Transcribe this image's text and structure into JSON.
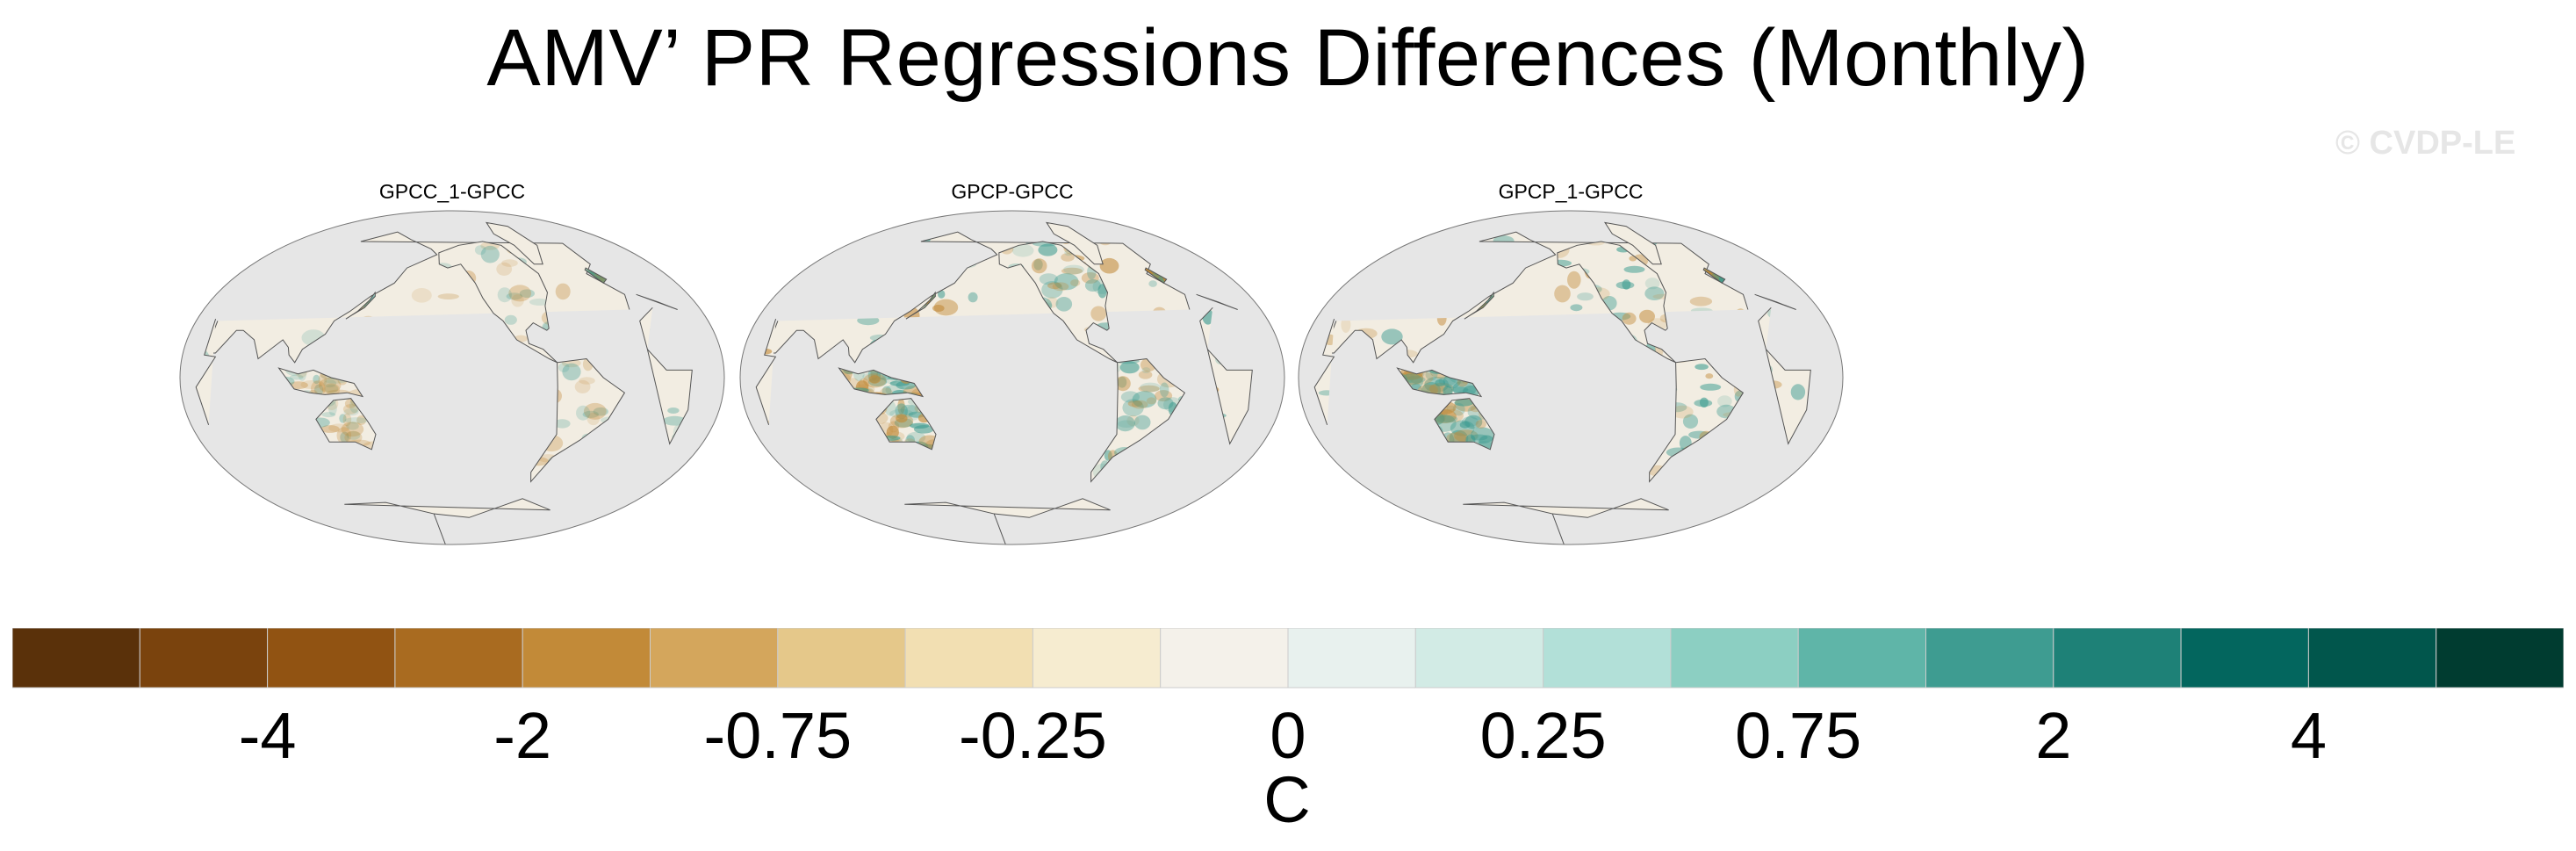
{
  "title": "AMV’ PR Regressions Differences (Monthly)",
  "watermark": "© CVDP-LE",
  "panels": [
    {
      "title": "GPCC_1-GPCC",
      "intensity": 0.45
    },
    {
      "title": "GPCP-GPCC",
      "intensity": 1.0
    },
    {
      "title": "GPCP_1-GPCC",
      "intensity": 0.9
    }
  ],
  "colorbar": {
    "colors": [
      "#5a310a",
      "#7a430d",
      "#915312",
      "#a96b20",
      "#c28a38",
      "#d4a65c",
      "#e5c88a",
      "#f2dfb2",
      "#f6ecd0",
      "#f4f1ea",
      "#e8f1ee",
      "#d2ebe5",
      "#b2e0d8",
      "#8ccfc2",
      "#5fb5a8",
      "#3e9c91",
      "#1e8177",
      "#03665e",
      "#01564c",
      "#003c30"
    ],
    "tick_labels": [
      "-4",
      "-2",
      "-0.75",
      "-0.25",
      "0",
      "0.25",
      "0.75",
      "2",
      "4"
    ],
    "units": "C"
  },
  "colors": {
    "land": "#e6e6e6",
    "coast": "#555555",
    "dry": "#c28a38",
    "wet": "#3e9c91"
  }
}
